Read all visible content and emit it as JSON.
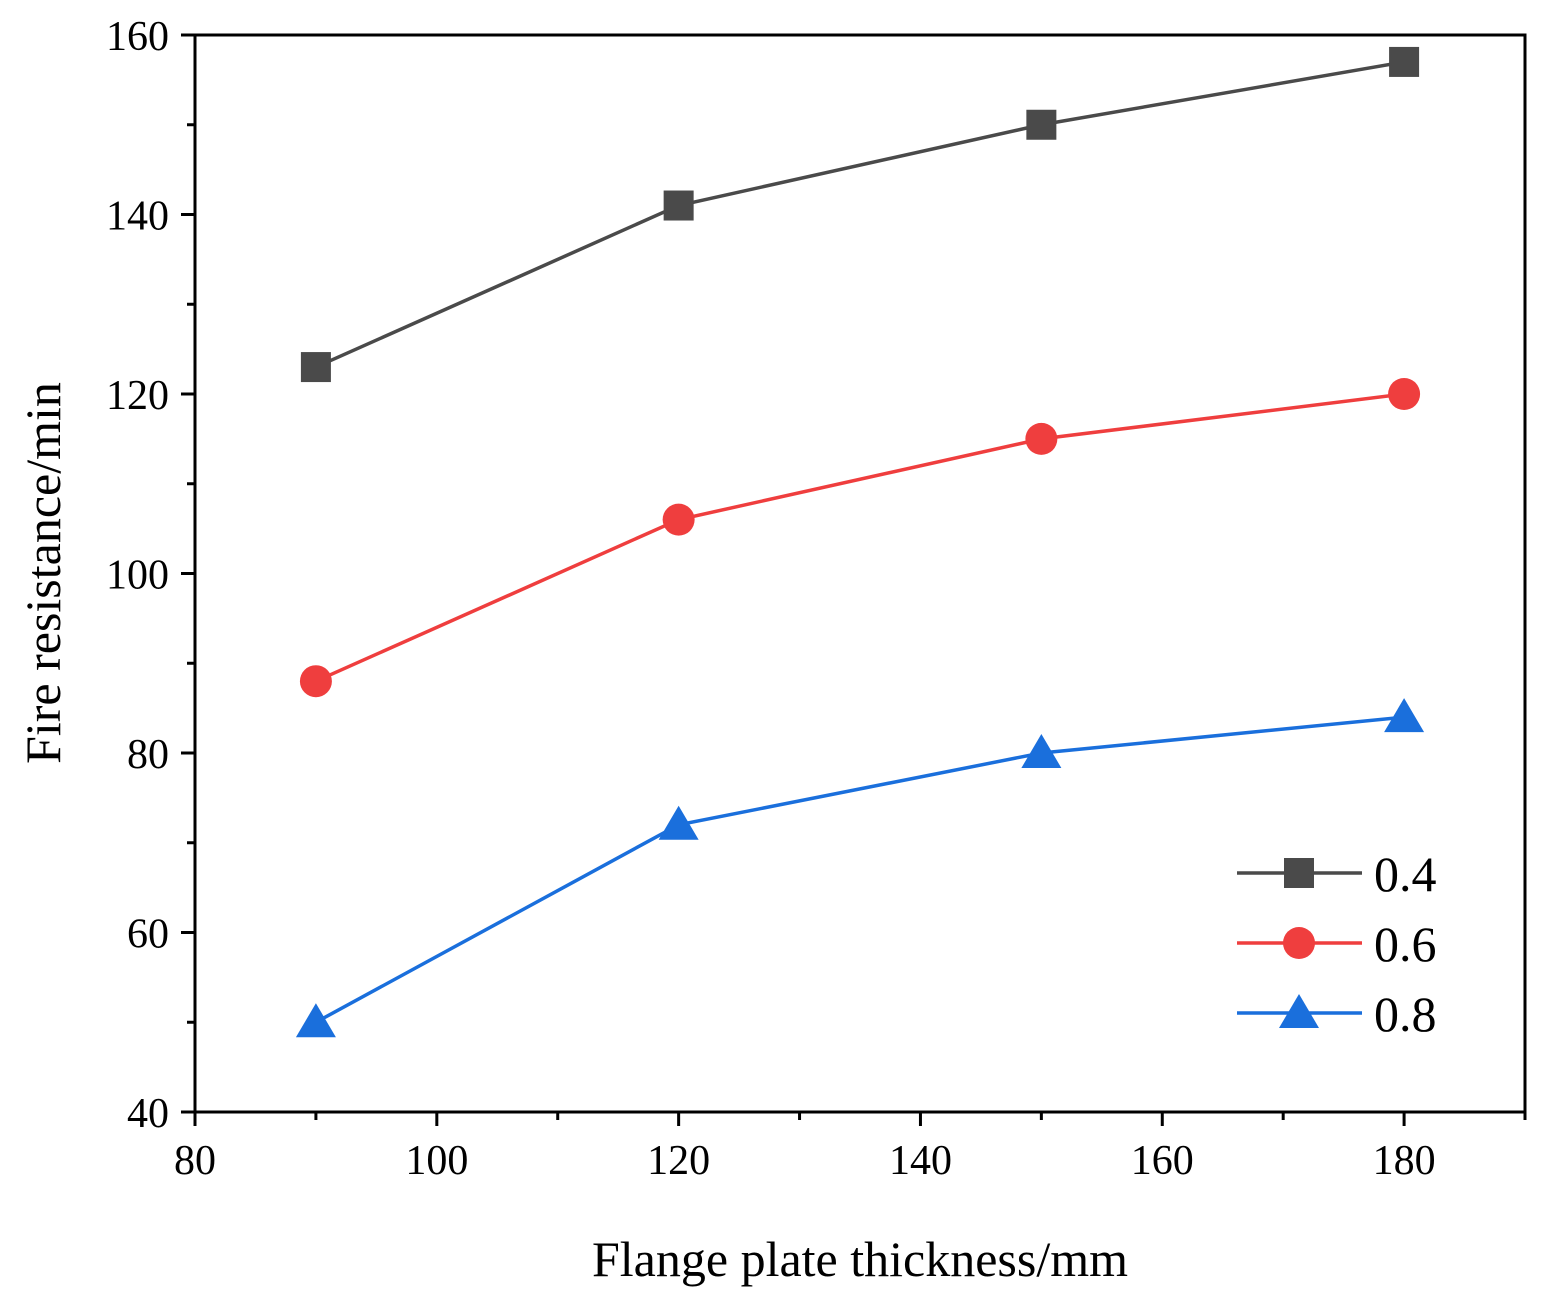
{
  "chart_data": {
    "type": "line",
    "title": "",
    "xlabel": "Flange plate thickness/mm",
    "ylabel": "Fire resistance/min",
    "xlim": [
      80,
      190
    ],
    "ylim": [
      40,
      160
    ],
    "x_major_ticks": [
      80,
      100,
      120,
      140,
      160,
      180
    ],
    "x_minor_ticks": [
      90,
      110,
      130,
      150,
      170,
      190
    ],
    "y_major_ticks": [
      40,
      60,
      80,
      100,
      120,
      140,
      160
    ],
    "y_minor_ticks": [
      50,
      70,
      90,
      110,
      130,
      150
    ],
    "x_tick_labels": [
      "80",
      "100",
      "120",
      "140",
      "160",
      "180"
    ],
    "y_tick_labels": [
      "40",
      "60",
      "80",
      "100",
      "120",
      "140",
      "160"
    ],
    "grid": false,
    "legend_position": "bottom-right",
    "x": [
      90,
      120,
      150,
      180
    ],
    "series": [
      {
        "name": "0.4",
        "values": [
          123,
          141,
          150,
          157
        ],
        "color": "#4a4a4a",
        "marker": "square"
      },
      {
        "name": "0.6",
        "values": [
          88,
          106,
          115,
          120
        ],
        "color": "#ef3e3e",
        "marker": "circle"
      },
      {
        "name": "0.8",
        "values": [
          50,
          72,
          80,
          84
        ],
        "color": "#1a6fdc",
        "marker": "triangle"
      }
    ]
  }
}
